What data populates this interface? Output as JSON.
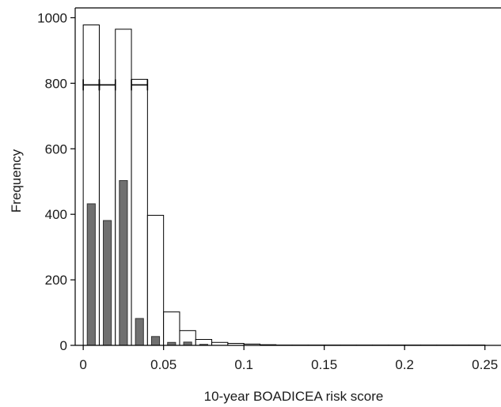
{
  "chart_data": {
    "type": "bar",
    "title": "",
    "xlabel": "10-year BOADICEA risk score",
    "ylabel": "Frequency",
    "xlim": [
      -0.005,
      0.26
    ],
    "ylim": [
      0,
      1030
    ],
    "x_ticks": [
      0,
      0.05,
      0.1,
      0.15,
      0.2,
      0.25
    ],
    "x_tick_labels": [
      "0",
      "0.05",
      "0.1",
      "0.15",
      "0.2",
      "0.25"
    ],
    "y_ticks": [
      0,
      200,
      400,
      600,
      800,
      1000
    ],
    "y_tick_labels": [
      "0",
      "200",
      "400",
      "600",
      "800",
      "1000"
    ],
    "grid": false,
    "legend": "none",
    "series": [
      {
        "style": "outlined",
        "color": "#ffffff",
        "edge_color": "#000000",
        "bin_width": 0.01,
        "bin_starts": [
          0,
          0.01,
          0.02,
          0.03,
          0.04,
          0.05,
          0.06,
          0.07,
          0.08,
          0.09,
          0.1,
          0.11,
          0.12,
          0.13,
          0.14,
          0.15,
          0.16,
          0.17,
          0.18,
          0.19,
          0.2,
          0.21,
          0.22,
          0.23,
          0.24
        ],
        "values": [
          978,
          795,
          965,
          812,
          397,
          102,
          45,
          18,
          9,
          6,
          4,
          2,
          1,
          1,
          1,
          1,
          1,
          1,
          1,
          1,
          1,
          1,
          1,
          1,
          1
        ]
      },
      {
        "style": "filled",
        "color": "#707070",
        "edge_color": "#333333",
        "bin_width": 0.005,
        "bin_starts": [
          0,
          0.01,
          0.02,
          0.03,
          0.04,
          0.05,
          0.06,
          0.07
        ],
        "values": [
          432,
          381,
          503,
          82,
          27,
          9,
          10,
          3
        ]
      }
    ],
    "error_bars": [
      {
        "x_start": 0,
        "x_end": 0.01,
        "y": 795
      },
      {
        "x_start": 0.01,
        "x_end": 0.02,
        "y": 795
      },
      {
        "x_start": 0.03,
        "x_end": 0.04,
        "y": 795
      }
    ]
  }
}
